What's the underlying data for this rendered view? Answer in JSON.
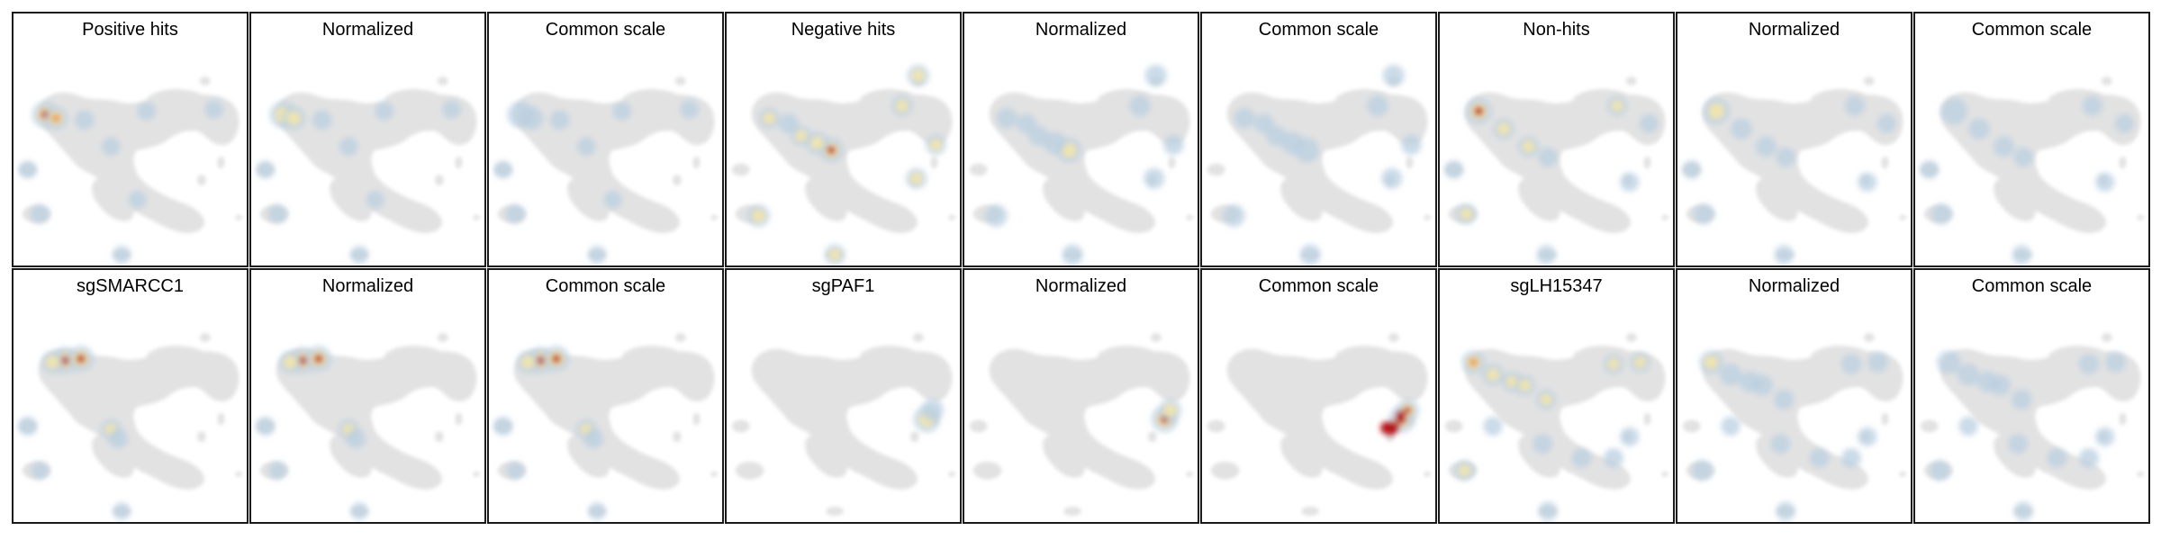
{
  "figure": {
    "row1": [
      {
        "title": "Positive hits",
        "heat": "hot",
        "spots": "pos"
      },
      {
        "title": "Normalized",
        "heat": "mid",
        "spots": "pos"
      },
      {
        "title": "Common scale",
        "heat": "cool",
        "spots": "pos"
      },
      {
        "title": "Negative hits",
        "heat": "hot",
        "spots": "neg"
      },
      {
        "title": "Normalized",
        "heat": "mid",
        "spots": "neg"
      },
      {
        "title": "Common scale",
        "heat": "cool",
        "spots": "neg"
      },
      {
        "title": "Non-hits",
        "heat": "hot",
        "spots": "non"
      },
      {
        "title": "Normalized",
        "heat": "mid",
        "spots": "non"
      },
      {
        "title": "Common scale",
        "heat": "cool",
        "spots": "non"
      }
    ],
    "row2": [
      {
        "title": "sgSMARCC1",
        "heat": "hot",
        "spots": "smarcc1"
      },
      {
        "title": "Normalized",
        "heat": "hot",
        "spots": "smarcc1"
      },
      {
        "title": "Common scale",
        "heat": "hot",
        "spots": "smarcc1"
      },
      {
        "title": "sgPAF1",
        "heat": "mid",
        "spots": "paf1"
      },
      {
        "title": "Normalized",
        "heat": "hot",
        "spots": "paf1"
      },
      {
        "title": "Common scale",
        "heat": "max",
        "spots": "paf1"
      },
      {
        "title": "sgLH15347",
        "heat": "hot",
        "spots": "lh"
      },
      {
        "title": "Normalized",
        "heat": "mid",
        "spots": "lh"
      },
      {
        "title": "Common scale",
        "heat": "cool",
        "spots": "lh"
      }
    ]
  },
  "colors": {
    "background_cells": "#e2e2e2",
    "low_density": "#b9cfe0",
    "mid_density": "#f4e7a8",
    "high_density": "#e89a4a",
    "max_density": "#b5121b",
    "border": "#1a1a1a"
  }
}
